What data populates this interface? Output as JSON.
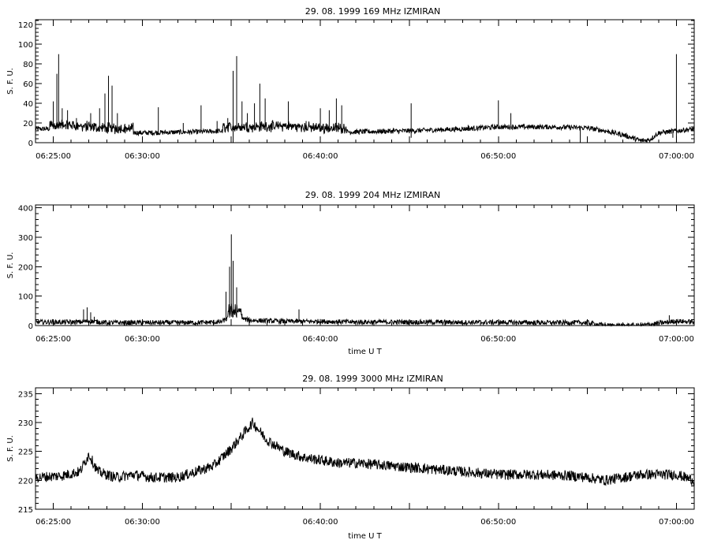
{
  "chart_data": [
    {
      "type": "line",
      "title": "29.  08.  1999    169 MHz    IZMIRAN",
      "ylabel": "S. F. U.",
      "xlabel": "",
      "x_ticks": [
        "06:25:00",
        "06:30:00",
        "06:40:00",
        "06:50:00",
        "07:00:00"
      ],
      "x_tick_minutes": [
        25,
        30,
        40,
        50,
        60
      ],
      "xlim_minutes": [
        24,
        61
      ],
      "y_ticks": [
        0,
        20,
        40,
        60,
        80,
        100,
        120
      ],
      "ylim": [
        0,
        125
      ],
      "baseline": [
        [
          24,
          14
        ],
        [
          26,
          14
        ],
        [
          27,
          12
        ],
        [
          28,
          11
        ],
        [
          30,
          10
        ],
        [
          33,
          11
        ],
        [
          35,
          12
        ],
        [
          38,
          13
        ],
        [
          40,
          11
        ],
        [
          42,
          11
        ],
        [
          45,
          12
        ],
        [
          48,
          14
        ],
        [
          50,
          16
        ],
        [
          53,
          16
        ],
        [
          55,
          15
        ],
        [
          56,
          12
        ],
        [
          57,
          8
        ],
        [
          58,
          2
        ],
        [
          58.5,
          3
        ],
        [
          59,
          10
        ],
        [
          61,
          14
        ]
      ],
      "spikes": [
        [
          25.0,
          42
        ],
        [
          25.2,
          70
        ],
        [
          25.3,
          90
        ],
        [
          25.5,
          35
        ],
        [
          25.8,
          33
        ],
        [
          26.3,
          25
        ],
        [
          27.1,
          30
        ],
        [
          27.6,
          35
        ],
        [
          27.9,
          50
        ],
        [
          28.1,
          68
        ],
        [
          28.3,
          58
        ],
        [
          28.6,
          30
        ],
        [
          29.0,
          18
        ],
        [
          30.9,
          36
        ],
        [
          32.3,
          20
        ],
        [
          33.3,
          38
        ],
        [
          34.2,
          22
        ],
        [
          34.8,
          25
        ],
        [
          35.1,
          73
        ],
        [
          35.3,
          88
        ],
        [
          35.6,
          42
        ],
        [
          35.9,
          30
        ],
        [
          36.3,
          40
        ],
        [
          36.6,
          60
        ],
        [
          36.9,
          45
        ],
        [
          37.3,
          22
        ],
        [
          38.2,
          42
        ],
        [
          39.2,
          22
        ],
        [
          40.0,
          35
        ],
        [
          40.5,
          33
        ],
        [
          40.9,
          45
        ],
        [
          41.2,
          38
        ],
        [
          42.5,
          14
        ],
        [
          43.5,
          14
        ],
        [
          44.1,
          15
        ],
        [
          44.5,
          12
        ],
        [
          45.1,
          40
        ],
        [
          48.3,
          18
        ],
        [
          50.0,
          43
        ],
        [
          50.7,
          30
        ],
        [
          51.5,
          15
        ]
      ],
      "dips": [
        [
          35.1,
          0
        ],
        [
          45.1,
          5
        ],
        [
          54.6,
          0
        ],
        [
          59.8,
          5
        ]
      ],
      "tall_line": [
        60.0,
        90
      ]
    },
    {
      "type": "line",
      "title": "29.  08.  1999    204 MHz    IZMIRAN",
      "ylabel": "S. F. U.",
      "xlabel": "time   U T",
      "x_ticks": [
        "06:25:00",
        "06:30:00",
        "06:40:00",
        "06:50:00",
        "07:00:00"
      ],
      "x_tick_minutes": [
        25,
        30,
        40,
        50,
        60
      ],
      "xlim_minutes": [
        24,
        61
      ],
      "y_ticks": [
        0,
        100,
        200,
        300,
        400
      ],
      "ylim": [
        0,
        410
      ],
      "baseline": [
        [
          24,
          12
        ],
        [
          26.5,
          12
        ],
        [
          27,
          15
        ],
        [
          28,
          10
        ],
        [
          30,
          10
        ],
        [
          33,
          10
        ],
        [
          34.4,
          12
        ],
        [
          35,
          30
        ],
        [
          35.5,
          25
        ],
        [
          36,
          18
        ],
        [
          37,
          16
        ],
        [
          38,
          14
        ],
        [
          40,
          14
        ],
        [
          42,
          12
        ],
        [
          45,
          12
        ],
        [
          48,
          11
        ],
        [
          50,
          11
        ],
        [
          53,
          10
        ],
        [
          55,
          10
        ],
        [
          56,
          0
        ],
        [
          58,
          0
        ],
        [
          59,
          8
        ],
        [
          60,
          15
        ],
        [
          61,
          12
        ]
      ],
      "spikes": [
        [
          26.7,
          55
        ],
        [
          26.9,
          62
        ],
        [
          27.1,
          45
        ],
        [
          27.3,
          30
        ],
        [
          30.0,
          15
        ],
        [
          34.7,
          115
        ],
        [
          34.9,
          200
        ],
        [
          35.0,
          310
        ],
        [
          35.1,
          220
        ],
        [
          35.3,
          130
        ],
        [
          35.6,
          40
        ],
        [
          36.0,
          28
        ],
        [
          37.8,
          25
        ],
        [
          38.8,
          55
        ],
        [
          40.0,
          22
        ],
        [
          41.0,
          12
        ],
        [
          47.0,
          12
        ],
        [
          51.0,
          15
        ],
        [
          59.6,
          35
        ]
      ],
      "dips": [],
      "tall_line": null
    },
    {
      "type": "line",
      "title": "29.  08.  1999    3000 MHz    IZMIRAN",
      "ylabel": "S. F. U.",
      "xlabel": "time   U T",
      "x_ticks": [
        "06:25:00",
        "06:30:00",
        "06:40:00",
        "06:50:00",
        "07:00:00"
      ],
      "x_tick_minutes": [
        25,
        30,
        40,
        50,
        60
      ],
      "xlim_minutes": [
        24,
        61
      ],
      "y_ticks": [
        215,
        220,
        225,
        230,
        235
      ],
      "ylim": [
        215,
        236
      ],
      "baseline": [
        [
          24,
          220.5
        ],
        [
          25.5,
          220.8
        ],
        [
          26.5,
          221.5
        ],
        [
          27.0,
          224.5
        ],
        [
          27.5,
          221.5
        ],
        [
          28.5,
          220.5
        ],
        [
          29.5,
          221
        ],
        [
          30.5,
          220.5
        ],
        [
          32,
          220.5
        ],
        [
          33,
          221.5
        ],
        [
          34,
          222.5
        ],
        [
          35,
          225.5
        ],
        [
          35.8,
          228.5
        ],
        [
          36.2,
          230
        ],
        [
          37,
          227
        ],
        [
          38,
          225
        ],
        [
          39,
          224
        ],
        [
          40,
          223.5
        ],
        [
          41,
          223
        ],
        [
          42,
          223
        ],
        [
          44,
          222.5
        ],
        [
          46,
          222
        ],
        [
          48,
          221.5
        ],
        [
          50,
          221
        ],
        [
          52,
          221
        ],
        [
          54,
          220.8
        ],
        [
          55,
          220.5
        ],
        [
          56,
          220
        ],
        [
          57,
          220.5
        ],
        [
          58,
          221
        ],
        [
          59,
          221
        ],
        [
          60,
          221
        ],
        [
          61,
          220
        ]
      ],
      "spikes": [],
      "dips": [],
      "tall_line": null,
      "noise_amp": 0.9
    }
  ]
}
